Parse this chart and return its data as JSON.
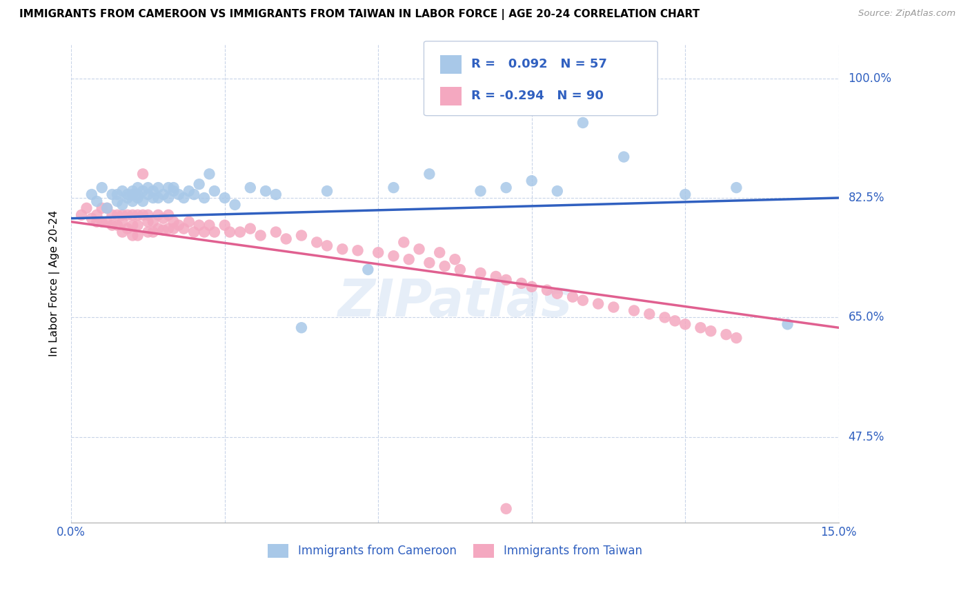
{
  "title": "IMMIGRANTS FROM CAMEROON VS IMMIGRANTS FROM TAIWAN IN LABOR FORCE | AGE 20-24 CORRELATION CHART",
  "source": "Source: ZipAtlas.com",
  "ylabel": "In Labor Force | Age 20-24",
  "xlim": [
    0.0,
    0.15
  ],
  "ylim": [
    0.35,
    1.05
  ],
  "yticks": [
    1.0,
    0.825,
    0.65,
    0.475
  ],
  "ytick_labels": [
    "100.0%",
    "82.5%",
    "65.0%",
    "47.5%"
  ],
  "r_cameroon": "0.092",
  "n_cameroon": "57",
  "r_taiwan": "-0.294",
  "n_taiwan": "90",
  "color_cam_fill": "#a8c8e8",
  "color_tai_fill": "#f4a8c0",
  "color_blue_line": "#3060c0",
  "color_pink_line": "#e06090",
  "color_blue_text": "#3060c0",
  "watermark": "ZIPatlas",
  "cam_line_x0": 0.0,
  "cam_line_y0": 0.795,
  "cam_line_x1": 0.15,
  "cam_line_y1": 0.825,
  "tai_line_x0": 0.0,
  "tai_line_y0": 0.79,
  "tai_line_x1": 0.15,
  "tai_line_y1": 0.635,
  "cam_x": [
    0.004,
    0.005,
    0.006,
    0.007,
    0.008,
    0.009,
    0.009,
    0.01,
    0.01,
    0.011,
    0.011,
    0.012,
    0.012,
    0.012,
    0.013,
    0.013,
    0.013,
    0.014,
    0.014,
    0.015,
    0.015,
    0.016,
    0.016,
    0.017,
    0.017,
    0.018,
    0.019,
    0.019,
    0.02,
    0.02,
    0.021,
    0.022,
    0.023,
    0.024,
    0.025,
    0.026,
    0.027,
    0.028,
    0.03,
    0.032,
    0.035,
    0.038,
    0.04,
    0.045,
    0.05,
    0.058,
    0.063,
    0.07,
    0.08,
    0.085,
    0.09,
    0.095,
    0.1,
    0.108,
    0.12,
    0.13,
    0.14
  ],
  "cam_y": [
    0.83,
    0.82,
    0.84,
    0.81,
    0.83,
    0.82,
    0.83,
    0.835,
    0.815,
    0.83,
    0.825,
    0.835,
    0.82,
    0.83,
    0.84,
    0.825,
    0.83,
    0.835,
    0.82,
    0.83,
    0.84,
    0.825,
    0.835,
    0.825,
    0.84,
    0.83,
    0.825,
    0.84,
    0.84,
    0.835,
    0.83,
    0.825,
    0.835,
    0.83,
    0.845,
    0.825,
    0.86,
    0.835,
    0.825,
    0.815,
    0.84,
    0.835,
    0.83,
    0.635,
    0.835,
    0.72,
    0.84,
    0.86,
    0.835,
    0.84,
    0.85,
    0.835,
    0.935,
    0.885,
    0.83,
    0.84,
    0.64
  ],
  "tai_x": [
    0.002,
    0.003,
    0.004,
    0.005,
    0.005,
    0.006,
    0.006,
    0.007,
    0.007,
    0.008,
    0.008,
    0.009,
    0.009,
    0.01,
    0.01,
    0.01,
    0.011,
    0.011,
    0.012,
    0.012,
    0.012,
    0.013,
    0.013,
    0.013,
    0.014,
    0.014,
    0.015,
    0.015,
    0.015,
    0.016,
    0.016,
    0.017,
    0.017,
    0.018,
    0.018,
    0.019,
    0.019,
    0.02,
    0.02,
    0.021,
    0.022,
    0.023,
    0.024,
    0.025,
    0.026,
    0.027,
    0.028,
    0.03,
    0.031,
    0.033,
    0.035,
    0.037,
    0.04,
    0.042,
    0.045,
    0.048,
    0.05,
    0.053,
    0.056,
    0.06,
    0.063,
    0.066,
    0.07,
    0.073,
    0.076,
    0.08,
    0.083,
    0.085,
    0.088,
    0.09,
    0.093,
    0.095,
    0.098,
    0.1,
    0.103,
    0.106,
    0.11,
    0.113,
    0.116,
    0.118,
    0.12,
    0.123,
    0.125,
    0.128,
    0.13,
    0.065,
    0.068,
    0.072,
    0.075,
    0.085
  ],
  "tai_y": [
    0.8,
    0.81,
    0.795,
    0.8,
    0.79,
    0.81,
    0.79,
    0.81,
    0.79,
    0.8,
    0.785,
    0.8,
    0.785,
    0.8,
    0.79,
    0.775,
    0.8,
    0.78,
    0.8,
    0.785,
    0.77,
    0.8,
    0.785,
    0.77,
    0.8,
    0.86,
    0.79,
    0.775,
    0.8,
    0.79,
    0.775,
    0.8,
    0.78,
    0.795,
    0.778,
    0.8,
    0.78,
    0.79,
    0.78,
    0.785,
    0.78,
    0.79,
    0.775,
    0.785,
    0.775,
    0.785,
    0.775,
    0.785,
    0.775,
    0.775,
    0.78,
    0.77,
    0.775,
    0.765,
    0.77,
    0.76,
    0.755,
    0.75,
    0.748,
    0.745,
    0.74,
    0.735,
    0.73,
    0.725,
    0.72,
    0.715,
    0.71,
    0.705,
    0.7,
    0.695,
    0.69,
    0.685,
    0.68,
    0.675,
    0.67,
    0.665,
    0.66,
    0.655,
    0.65,
    0.645,
    0.64,
    0.635,
    0.63,
    0.625,
    0.62,
    0.76,
    0.75,
    0.745,
    0.735,
    0.37
  ]
}
